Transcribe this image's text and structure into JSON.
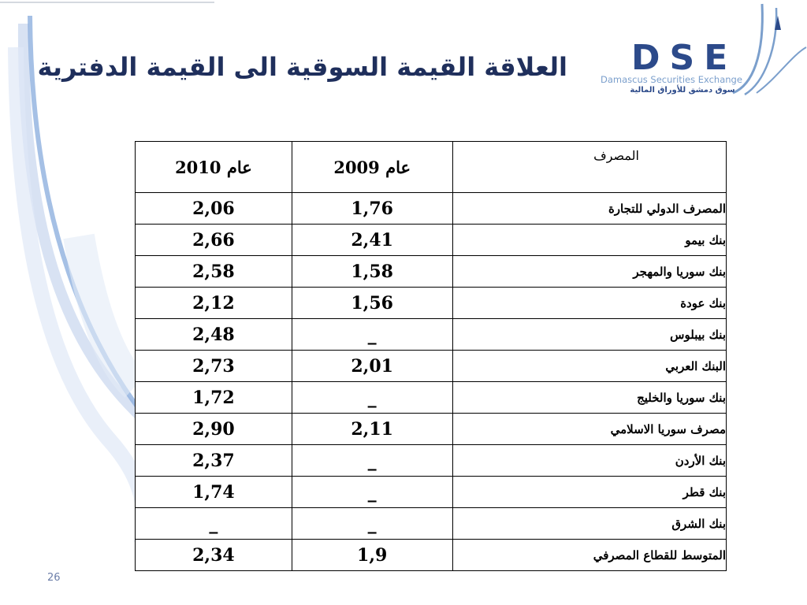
{
  "slide": {
    "title": "العلاقة القيمة السوقية الى القيمة الدفترية",
    "page_number": "26"
  },
  "logo": {
    "letters": "DSE",
    "english": "Damascus Securities Exchange",
    "arabic": "سوق دمشق للأوراق المالية"
  },
  "table": {
    "headers": {
      "bank": "المصرف",
      "year2009": "عام 2009",
      "year2010": "عام 2010"
    },
    "rows": [
      {
        "bank": "المصرف الدولي للتجارة",
        "y2009": "1,76",
        "y2010": "2,06"
      },
      {
        "bank": "بنك بيمو",
        "y2009": "2,41",
        "y2010": "2,66"
      },
      {
        "bank": "بنك سوريا والمهجر",
        "y2009": "1,58",
        "y2010": "2,58"
      },
      {
        "bank": "بنك عودة",
        "y2009": "1,56",
        "y2010": "2,12"
      },
      {
        "bank": "بنك بيبلوس",
        "y2009": "_",
        "y2010": "2,48"
      },
      {
        "bank": "البنك العربي",
        "y2009": "2,01",
        "y2010": "2,73"
      },
      {
        "bank": "بنك سوريا والخليج",
        "y2009": "_",
        "y2010": "1,72"
      },
      {
        "bank": "مصرف سوريا الاسلامي",
        "y2009": "2,11",
        "y2010": "2,90"
      },
      {
        "bank": "بنك الأردن",
        "y2009": "_",
        "y2010": "2,37"
      },
      {
        "bank": "بنك قطر",
        "y2009": "_",
        "y2010": "1,74"
      },
      {
        "bank": "بنك الشرق",
        "y2009": "_",
        "y2010": "_"
      },
      {
        "bank": "المتوسط للقطاع المصرفي",
        "y2009": "1,9",
        "y2010": "2,34"
      }
    ]
  },
  "colors": {
    "title": "#1f2f5c",
    "logo_blue": "#2c4a8a",
    "swoosh": "#a8c0e6"
  }
}
